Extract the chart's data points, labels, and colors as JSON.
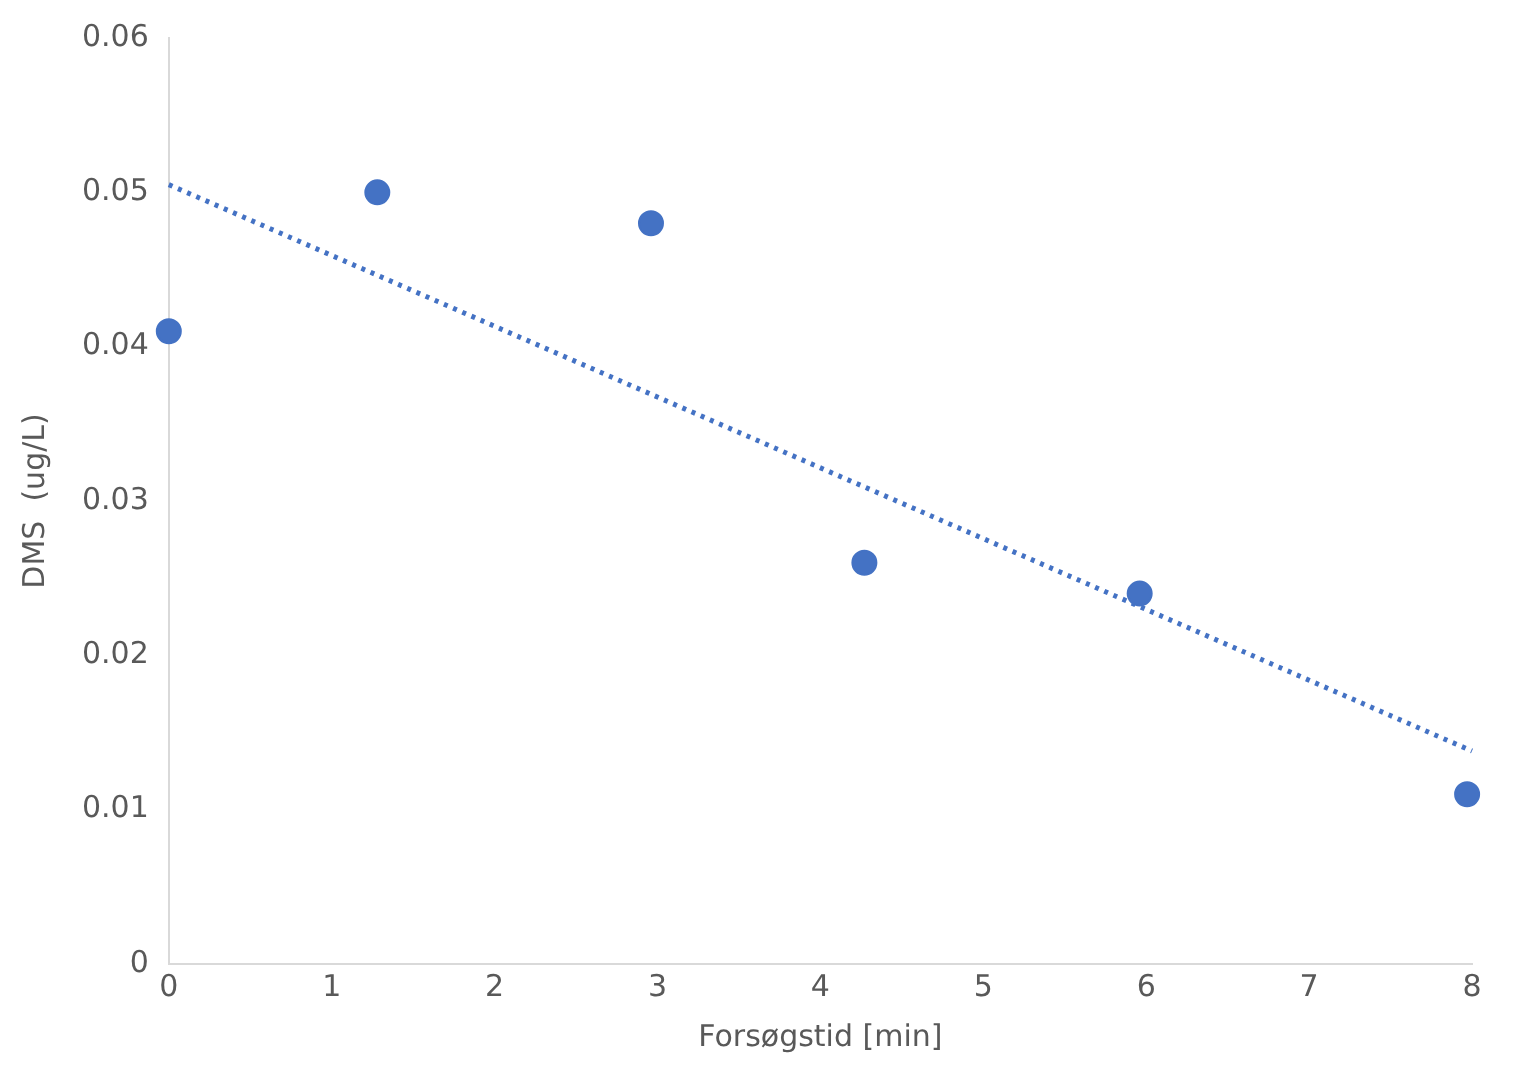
{
  "chart_data": {
    "type": "scatter",
    "xlabel": "Forsøgstid [min]",
    "ylabel": "DMS  (ug/L)",
    "series": [
      {
        "color": "#4472c4",
        "x": [
          0,
          1.28,
          2.96,
          4.27,
          5.96,
          7.97
        ],
        "values": [
          0.041,
          0.05,
          0.048,
          0.026,
          0.024,
          0.011
        ],
        "marker": "circle"
      },
      {
        "type": "line",
        "color": "#4472c4",
        "x": [
          0,
          8
        ],
        "values": [
          0.0505,
          0.0138
        ],
        "line_style": "dotted",
        "marker": "none"
      }
    ],
    "xlim": [
      0,
      8
    ],
    "xticks": [
      0,
      1,
      2,
      3,
      4,
      5,
      6,
      7,
      8
    ],
    "ylim": [
      0,
      0.06
    ],
    "yticks": [
      0,
      0.01,
      0.02,
      0.03,
      0.04,
      0.05,
      0.06
    ],
    "grid": false,
    "legend": false
  }
}
